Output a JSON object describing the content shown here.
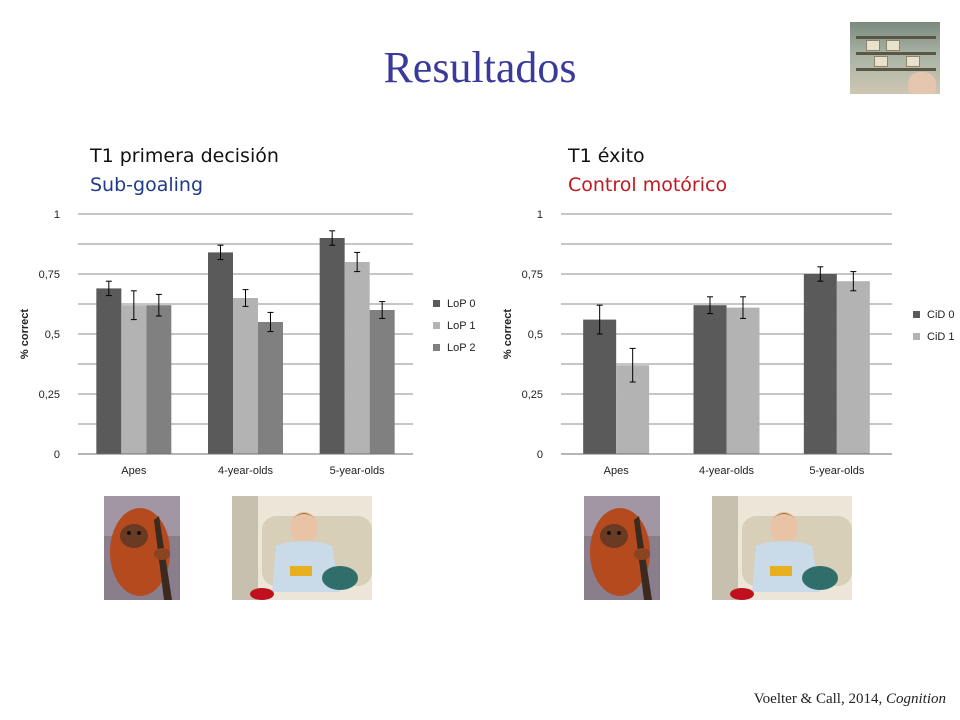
{
  "slide": {
    "title": "Resultados"
  },
  "left_panel": {
    "heading_line1": "T1 primera decisión",
    "heading_line2": "Sub-goaling",
    "heading_line2_color": "#1f3a8a"
  },
  "right_panel": {
    "heading_line1": "T1 éxito",
    "heading_line2": "Control motórico",
    "heading_line2_color": "#c0181f"
  },
  "citation": {
    "authors": "Voelter & Call, 2014, ",
    "journal": "Cognition"
  },
  "chart_data": [
    {
      "type": "bar",
      "categories": [
        "Apes",
        "4-year-olds",
        "5-year-olds"
      ],
      "ylabel": "% correct",
      "ylim": [
        0,
        1
      ],
      "yticks": [
        0,
        0.25,
        0.5,
        0.75,
        1
      ],
      "ytick_labels": [
        "0",
        "0,25",
        "0,5",
        "0,75",
        "1"
      ],
      "grid": true,
      "legend_position": "right",
      "series": [
        {
          "name": "LoP 0",
          "color": "#5a5a5a",
          "values": [
            0.69,
            0.84,
            0.9
          ],
          "errors": [
            0.03,
            0.03,
            0.03
          ]
        },
        {
          "name": "LoP 1",
          "color": "#b3b3b3",
          "values": [
            0.62,
            0.65,
            0.8
          ],
          "errors": [
            0.06,
            0.035,
            0.04
          ]
        },
        {
          "name": "LoP 2",
          "color": "#808080",
          "values": [
            0.62,
            0.55,
            0.6
          ],
          "errors": [
            0.045,
            0.04,
            0.035
          ]
        }
      ]
    },
    {
      "type": "bar",
      "categories": [
        "Apes",
        "4-year-olds",
        "5-year-olds"
      ],
      "ylabel": "% correct",
      "ylim": [
        0,
        1
      ],
      "yticks": [
        0,
        0.25,
        0.5,
        0.75,
        1
      ],
      "ytick_labels": [
        "0",
        "0,25",
        "0,5",
        "0,75",
        "1"
      ],
      "grid": true,
      "legend_position": "right",
      "series": [
        {
          "name": "CiD 0",
          "color": "#5a5a5a",
          "values": [
            0.56,
            0.62,
            0.75
          ],
          "errors": [
            0.06,
            0.035,
            0.03
          ]
        },
        {
          "name": "CiD 1",
          "color": "#b3b3b3",
          "values": [
            0.37,
            0.61,
            0.72
          ],
          "errors": [
            0.07,
            0.045,
            0.04
          ]
        }
      ]
    }
  ]
}
